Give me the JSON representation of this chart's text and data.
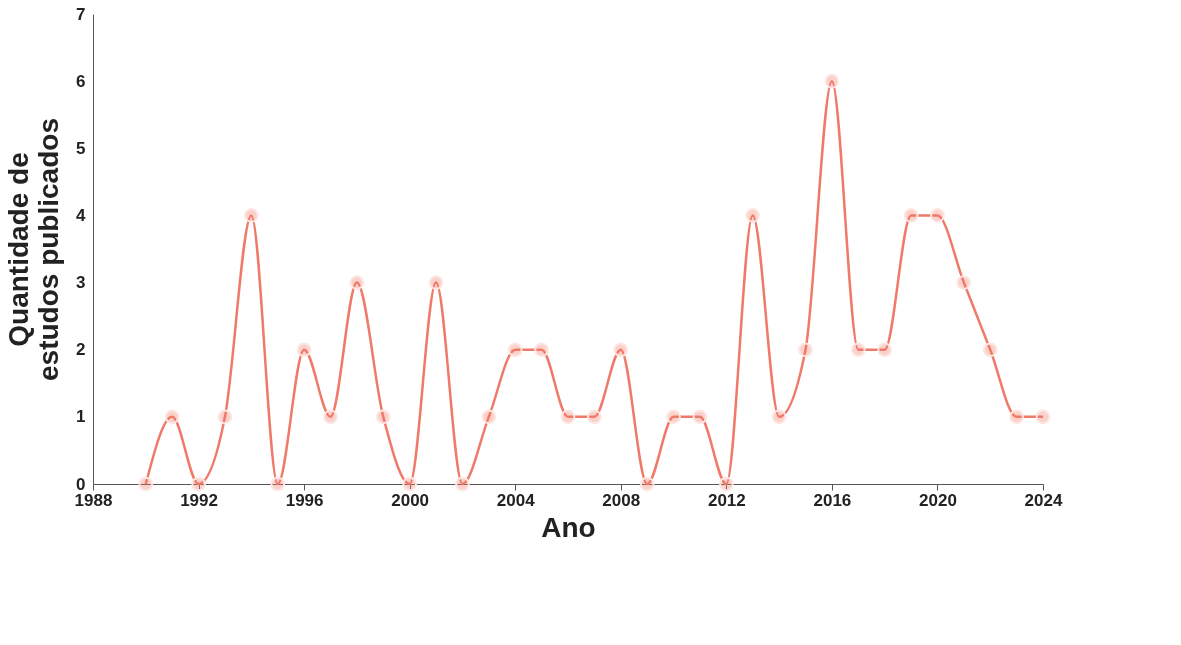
{
  "chart_data": {
    "type": "line",
    "xlabel": "Ano",
    "ylabel": "Quantidade de estudos publicados",
    "x": [
      1990,
      1991,
      1992,
      1993,
      1994,
      1995,
      1996,
      1997,
      1998,
      1999,
      2000,
      2001,
      2002,
      2003,
      2004,
      2005,
      2006,
      2007,
      2008,
      2009,
      2010,
      2011,
      2012,
      2013,
      2014,
      2015,
      2016,
      2017,
      2018,
      2019,
      2020,
      2021,
      2022,
      2023,
      2024
    ],
    "series": [
      {
        "color": "#f07a6a",
        "values": [
          0,
          1,
          0,
          1,
          4,
          0,
          2,
          1,
          3,
          1,
          0,
          3,
          0,
          1,
          2,
          2,
          1,
          1,
          2,
          0,
          1,
          1,
          0,
          4,
          1,
          2,
          6,
          2,
          2,
          4,
          4,
          3,
          2,
          1,
          1
        ]
      }
    ],
    "xlim": [
      1988,
      2024
    ],
    "xticks": [
      1988,
      1992,
      1996,
      2000,
      2004,
      2008,
      2012,
      2016,
      2020,
      2024
    ],
    "ylim": [
      0,
      7
    ],
    "yticks": [
      0,
      1,
      2,
      3,
      4,
      5,
      6,
      7
    ],
    "grid": false,
    "marker": "circle",
    "line_style": "solid"
  }
}
